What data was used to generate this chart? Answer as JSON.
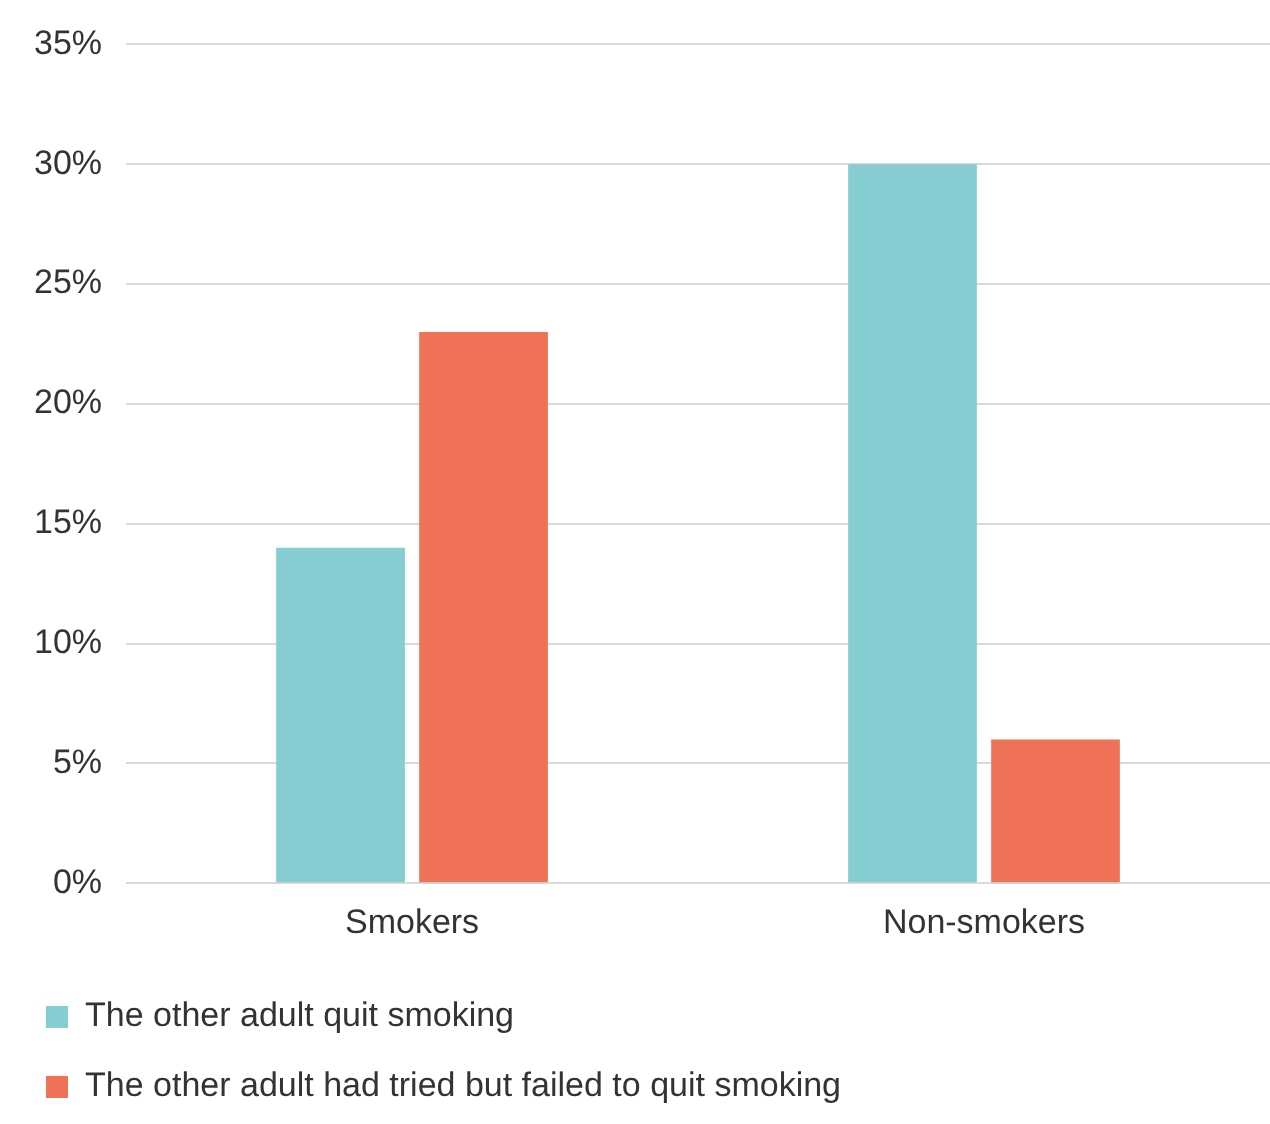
{
  "chart_data": {
    "type": "bar",
    "categories": [
      "Smokers",
      "Non-smokers"
    ],
    "series": [
      {
        "name": "The other adult quit smoking",
        "color": "#85cdd1",
        "values": [
          14,
          30
        ]
      },
      {
        "name": "The other adult had tried but failed to quit smoking",
        "color": "#ef7256",
        "values": [
          23,
          6
        ]
      }
    ],
    "ylim": [
      0,
      35
    ],
    "yticks": [
      {
        "value": 0,
        "label": "0%"
      },
      {
        "value": 5,
        "label": "5%"
      },
      {
        "value": 10,
        "label": "10%"
      },
      {
        "value": 15,
        "label": "15%"
      },
      {
        "value": 20,
        "label": "20%"
      },
      {
        "value": 25,
        "label": "25%"
      },
      {
        "value": 30,
        "label": "30%"
      },
      {
        "value": 35,
        "label": "35%"
      }
    ],
    "grid": "y",
    "legend": "bottom"
  }
}
